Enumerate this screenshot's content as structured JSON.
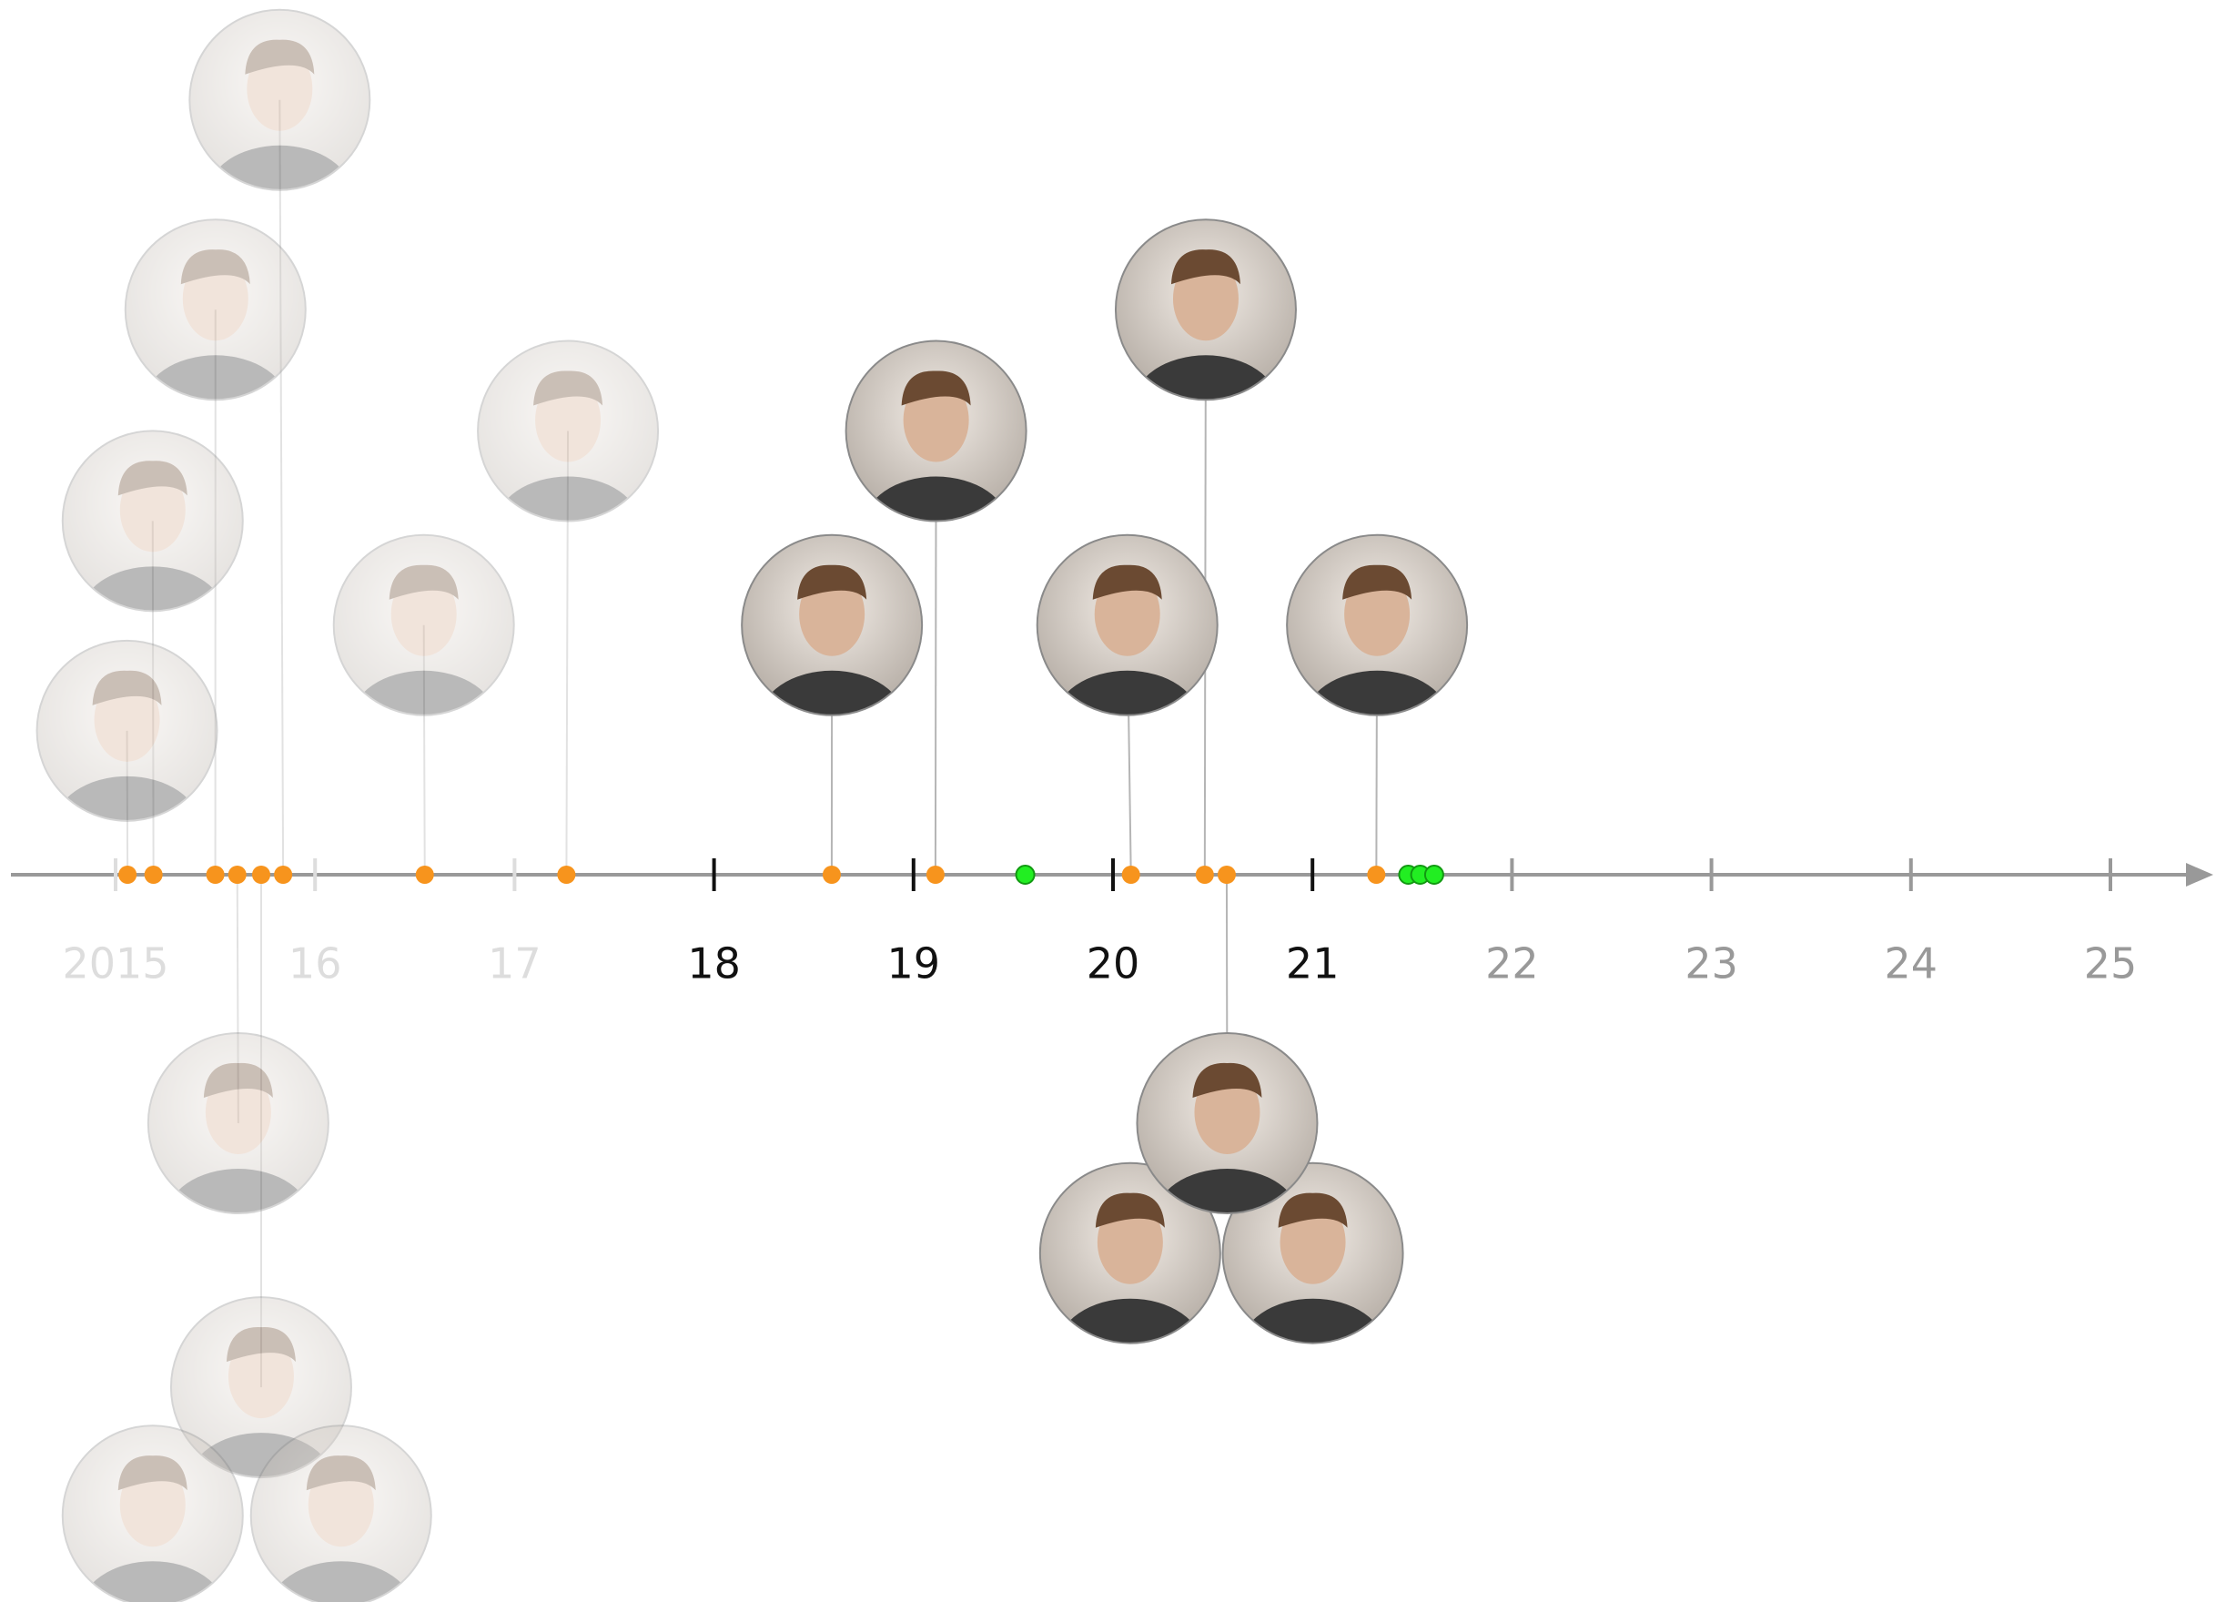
{
  "chart_data": {
    "type": "timeline",
    "xlim": [
      2014.5,
      2025.5
    ],
    "xticks": [
      {
        "value": 2015,
        "label": "2015",
        "color": "#dddddd"
      },
      {
        "value": 2016,
        "label": "16",
        "color": "#dddddd"
      },
      {
        "value": 2017,
        "label": "17",
        "color": "#dddddd"
      },
      {
        "value": 2018,
        "label": "18",
        "color": "#111111"
      },
      {
        "value": 2019,
        "label": "19",
        "color": "#111111"
      },
      {
        "value": 2020,
        "label": "20",
        "color": "#111111"
      },
      {
        "value": 2021,
        "label": "21",
        "color": "#111111"
      },
      {
        "value": 2022,
        "label": "22",
        "color": "#999999"
      },
      {
        "value": 2023,
        "label": "23",
        "color": "#999999"
      },
      {
        "value": 2024,
        "label": "24",
        "color": "#999999"
      },
      {
        "value": 2025,
        "label": "25",
        "color": "#999999"
      }
    ],
    "series": [
      {
        "color": "#f7941d",
        "values": [
          2015.06,
          2015.19,
          2015.5,
          2015.61,
          2015.73,
          2015.84,
          2016.55,
          2017.26,
          2018.59,
          2019.11,
          2020.09,
          2020.46,
          2020.57,
          2021.32
        ]
      },
      {
        "color": "#22ee22",
        "values": [
          2019.56,
          2021.48,
          2021.54,
          2021.61
        ]
      }
    ]
  }
}
